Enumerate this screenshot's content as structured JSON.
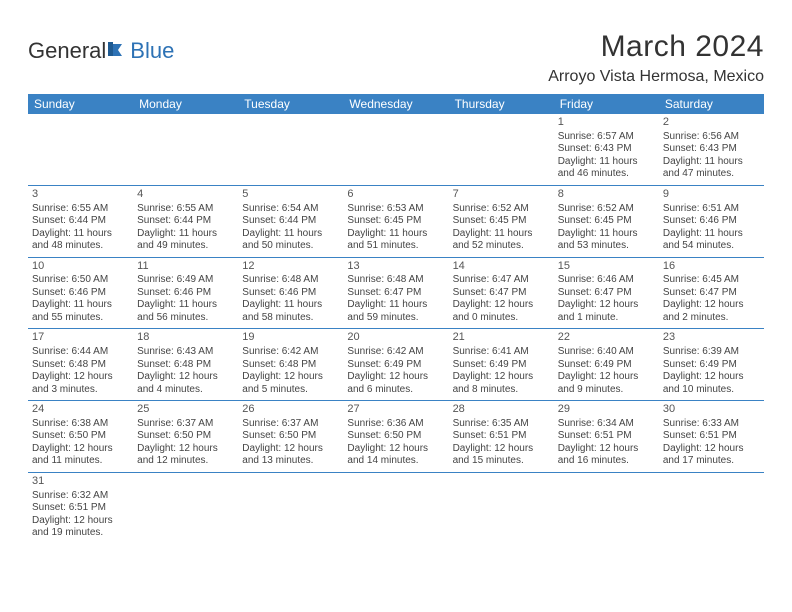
{
  "brand": {
    "part1": "General",
    "part2": "Blue"
  },
  "title": "March 2024",
  "location": "Arroyo Vista Hermosa, Mexico",
  "colors": {
    "header_bg": "#3a82c4",
    "header_text": "#ffffff",
    "rule": "#3a82c4",
    "brand_blue": "#2d72b5",
    "text": "#444444",
    "title_text": "#333333"
  },
  "day_headers": [
    "Sunday",
    "Monday",
    "Tuesday",
    "Wednesday",
    "Thursday",
    "Friday",
    "Saturday"
  ],
  "weeks": [
    [
      null,
      null,
      null,
      null,
      null,
      {
        "n": "1",
        "sr": "Sunrise: 6:57 AM",
        "ss": "Sunset: 6:43 PM",
        "dl1": "Daylight: 11 hours",
        "dl2": "and 46 minutes."
      },
      {
        "n": "2",
        "sr": "Sunrise: 6:56 AM",
        "ss": "Sunset: 6:43 PM",
        "dl1": "Daylight: 11 hours",
        "dl2": "and 47 minutes."
      }
    ],
    [
      {
        "n": "3",
        "sr": "Sunrise: 6:55 AM",
        "ss": "Sunset: 6:44 PM",
        "dl1": "Daylight: 11 hours",
        "dl2": "and 48 minutes."
      },
      {
        "n": "4",
        "sr": "Sunrise: 6:55 AM",
        "ss": "Sunset: 6:44 PM",
        "dl1": "Daylight: 11 hours",
        "dl2": "and 49 minutes."
      },
      {
        "n": "5",
        "sr": "Sunrise: 6:54 AM",
        "ss": "Sunset: 6:44 PM",
        "dl1": "Daylight: 11 hours",
        "dl2": "and 50 minutes."
      },
      {
        "n": "6",
        "sr": "Sunrise: 6:53 AM",
        "ss": "Sunset: 6:45 PM",
        "dl1": "Daylight: 11 hours",
        "dl2": "and 51 minutes."
      },
      {
        "n": "7",
        "sr": "Sunrise: 6:52 AM",
        "ss": "Sunset: 6:45 PM",
        "dl1": "Daylight: 11 hours",
        "dl2": "and 52 minutes."
      },
      {
        "n": "8",
        "sr": "Sunrise: 6:52 AM",
        "ss": "Sunset: 6:45 PM",
        "dl1": "Daylight: 11 hours",
        "dl2": "and 53 minutes."
      },
      {
        "n": "9",
        "sr": "Sunrise: 6:51 AM",
        "ss": "Sunset: 6:46 PM",
        "dl1": "Daylight: 11 hours",
        "dl2": "and 54 minutes."
      }
    ],
    [
      {
        "n": "10",
        "sr": "Sunrise: 6:50 AM",
        "ss": "Sunset: 6:46 PM",
        "dl1": "Daylight: 11 hours",
        "dl2": "and 55 minutes."
      },
      {
        "n": "11",
        "sr": "Sunrise: 6:49 AM",
        "ss": "Sunset: 6:46 PM",
        "dl1": "Daylight: 11 hours",
        "dl2": "and 56 minutes."
      },
      {
        "n": "12",
        "sr": "Sunrise: 6:48 AM",
        "ss": "Sunset: 6:46 PM",
        "dl1": "Daylight: 11 hours",
        "dl2": "and 58 minutes."
      },
      {
        "n": "13",
        "sr": "Sunrise: 6:48 AM",
        "ss": "Sunset: 6:47 PM",
        "dl1": "Daylight: 11 hours",
        "dl2": "and 59 minutes."
      },
      {
        "n": "14",
        "sr": "Sunrise: 6:47 AM",
        "ss": "Sunset: 6:47 PM",
        "dl1": "Daylight: 12 hours",
        "dl2": "and 0 minutes."
      },
      {
        "n": "15",
        "sr": "Sunrise: 6:46 AM",
        "ss": "Sunset: 6:47 PM",
        "dl1": "Daylight: 12 hours",
        "dl2": "and 1 minute."
      },
      {
        "n": "16",
        "sr": "Sunrise: 6:45 AM",
        "ss": "Sunset: 6:47 PM",
        "dl1": "Daylight: 12 hours",
        "dl2": "and 2 minutes."
      }
    ],
    [
      {
        "n": "17",
        "sr": "Sunrise: 6:44 AM",
        "ss": "Sunset: 6:48 PM",
        "dl1": "Daylight: 12 hours",
        "dl2": "and 3 minutes."
      },
      {
        "n": "18",
        "sr": "Sunrise: 6:43 AM",
        "ss": "Sunset: 6:48 PM",
        "dl1": "Daylight: 12 hours",
        "dl2": "and 4 minutes."
      },
      {
        "n": "19",
        "sr": "Sunrise: 6:42 AM",
        "ss": "Sunset: 6:48 PM",
        "dl1": "Daylight: 12 hours",
        "dl2": "and 5 minutes."
      },
      {
        "n": "20",
        "sr": "Sunrise: 6:42 AM",
        "ss": "Sunset: 6:49 PM",
        "dl1": "Daylight: 12 hours",
        "dl2": "and 6 minutes."
      },
      {
        "n": "21",
        "sr": "Sunrise: 6:41 AM",
        "ss": "Sunset: 6:49 PM",
        "dl1": "Daylight: 12 hours",
        "dl2": "and 8 minutes."
      },
      {
        "n": "22",
        "sr": "Sunrise: 6:40 AM",
        "ss": "Sunset: 6:49 PM",
        "dl1": "Daylight: 12 hours",
        "dl2": "and 9 minutes."
      },
      {
        "n": "23",
        "sr": "Sunrise: 6:39 AM",
        "ss": "Sunset: 6:49 PM",
        "dl1": "Daylight: 12 hours",
        "dl2": "and 10 minutes."
      }
    ],
    [
      {
        "n": "24",
        "sr": "Sunrise: 6:38 AM",
        "ss": "Sunset: 6:50 PM",
        "dl1": "Daylight: 12 hours",
        "dl2": "and 11 minutes."
      },
      {
        "n": "25",
        "sr": "Sunrise: 6:37 AM",
        "ss": "Sunset: 6:50 PM",
        "dl1": "Daylight: 12 hours",
        "dl2": "and 12 minutes."
      },
      {
        "n": "26",
        "sr": "Sunrise: 6:37 AM",
        "ss": "Sunset: 6:50 PM",
        "dl1": "Daylight: 12 hours",
        "dl2": "and 13 minutes."
      },
      {
        "n": "27",
        "sr": "Sunrise: 6:36 AM",
        "ss": "Sunset: 6:50 PM",
        "dl1": "Daylight: 12 hours",
        "dl2": "and 14 minutes."
      },
      {
        "n": "28",
        "sr": "Sunrise: 6:35 AM",
        "ss": "Sunset: 6:51 PM",
        "dl1": "Daylight: 12 hours",
        "dl2": "and 15 minutes."
      },
      {
        "n": "29",
        "sr": "Sunrise: 6:34 AM",
        "ss": "Sunset: 6:51 PM",
        "dl1": "Daylight: 12 hours",
        "dl2": "and 16 minutes."
      },
      {
        "n": "30",
        "sr": "Sunrise: 6:33 AM",
        "ss": "Sunset: 6:51 PM",
        "dl1": "Daylight: 12 hours",
        "dl2": "and 17 minutes."
      }
    ],
    [
      {
        "n": "31",
        "sr": "Sunrise: 6:32 AM",
        "ss": "Sunset: 6:51 PM",
        "dl1": "Daylight: 12 hours",
        "dl2": "and 19 minutes."
      },
      null,
      null,
      null,
      null,
      null,
      null
    ]
  ]
}
